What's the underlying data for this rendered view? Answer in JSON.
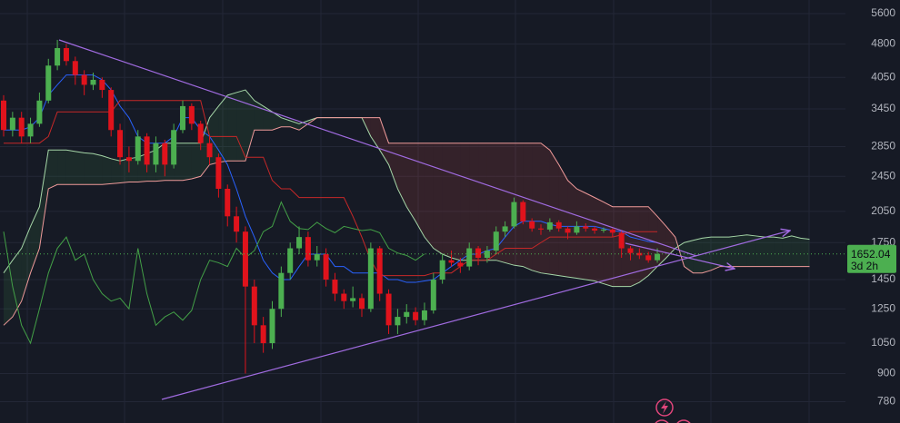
{
  "chart_data": {
    "type": "candlestick",
    "log_scale": true,
    "grid": true,
    "ylim": [
      700,
      6000
    ],
    "yticks": [
      780,
      900,
      1050,
      1250,
      1450,
      1750,
      2050,
      2450,
      2850,
      3450,
      4050,
      4800,
      5600
    ],
    "up_color": "#4caf50",
    "down_color": "#e0131c",
    "open": [
      3600,
      3100,
      3300,
      3000,
      3200,
      3600,
      4300,
      4700,
      4400,
      4100,
      3900,
      4000,
      3800,
      3100,
      2700,
      2650,
      3000,
      2600,
      2900,
      2600,
      3100,
      3500,
      3200,
      2900,
      2700,
      2300,
      2000,
      1850,
      1400,
      1150,
      1050,
      1250,
      1500,
      1700,
      1800,
      1600,
      1650,
      1450,
      1350,
      1300,
      1320,
      1250,
      1700,
      1350,
      1150,
      1200,
      1230,
      1180,
      1240,
      1450,
      1600,
      1580,
      1550,
      1700,
      1620,
      1680,
      1850,
      1900,
      2150,
      1950,
      1880,
      1870,
      1940,
      1880,
      1840,
      1900,
      1880,
      1860,
      1870,
      1840,
      1700,
      1660,
      1640,
      1600
    ],
    "high": [
      3700,
      3400,
      3400,
      3300,
      3750,
      4450,
      4900,
      4800,
      4500,
      4200,
      4150,
      4050,
      3850,
      3200,
      2850,
      3100,
      3050,
      3000,
      2950,
      3200,
      3600,
      3550,
      3250,
      3000,
      2750,
      2350,
      2100,
      1900,
      1450,
      1200,
      1300,
      1550,
      1750,
      1900,
      1850,
      1720,
      1700,
      1500,
      1380,
      1400,
      1350,
      1750,
      1720,
      1380,
      1250,
      1280,
      1260,
      1290,
      1500,
      1650,
      1680,
      1620,
      1750,
      1720,
      1720,
      1900,
      1950,
      2200,
      2170,
      1980,
      1920,
      1980,
      1960,
      1900,
      1950,
      1930,
      1900,
      1890,
      1880,
      1860,
      1720,
      1700,
      1670,
      1700
    ],
    "low": [
      3000,
      3000,
      2900,
      2900,
      3150,
      3550,
      4200,
      4300,
      3900,
      3700,
      3800,
      3650,
      3000,
      2600,
      2500,
      2600,
      2500,
      2500,
      2450,
      2550,
      3050,
      3100,
      2800,
      2600,
      2200,
      1900,
      1750,
      900,
      1050,
      1000,
      1020,
      1200,
      1450,
      1650,
      1550,
      1550,
      1400,
      1300,
      1250,
      1260,
      1200,
      1230,
      1300,
      1100,
      1100,
      1160,
      1150,
      1150,
      1220,
      1420,
      1550,
      1500,
      1520,
      1560,
      1580,
      1650,
      1800,
      1880,
      1920,
      1850,
      1820,
      1850,
      1850,
      1780,
      1820,
      1850,
      1830,
      1840,
      1800,
      1620,
      1600,
      1610,
      1580,
      1580
    ],
    "close": [
      3100,
      3300,
      3000,
      3200,
      3600,
      4300,
      4700,
      4400,
      4100,
      3900,
      4000,
      3800,
      3100,
      2700,
      2650,
      3000,
      2600,
      2900,
      2600,
      3100,
      3500,
      3200,
      2900,
      2700,
      2300,
      2000,
      1850,
      1400,
      1150,
      1050,
      1250,
      1500,
      1700,
      1800,
      1600,
      1650,
      1450,
      1350,
      1300,
      1320,
      1250,
      1700,
      1350,
      1150,
      1200,
      1230,
      1180,
      1240,
      1450,
      1600,
      1580,
      1550,
      1700,
      1620,
      1680,
      1850,
      1900,
      2150,
      1950,
      1880,
      1870,
      1940,
      1880,
      1840,
      1900,
      1880,
      1860,
      1870,
      1840,
      1700,
      1660,
      1640,
      1600,
      1652.04
    ],
    "series": [
      {
        "color": "#2962ff",
        "values": [
          3100,
          3100,
          3100,
          3150,
          3300,
          3700,
          3900,
          4100,
          4100,
          4100,
          4100,
          4000,
          3800,
          3500,
          3300,
          3000,
          2900,
          2900,
          2900,
          3000,
          3300,
          3300,
          3100,
          3000,
          2800,
          2600,
          2300,
          2000,
          1800,
          1600,
          1500,
          1450,
          1450,
          1550,
          1650,
          1650,
          1650,
          1550,
          1550,
          1500,
          1500,
          1500,
          1500,
          1450,
          1450,
          1430,
          1430,
          1440,
          1450,
          1500,
          1550,
          1600,
          1650,
          1650,
          1680,
          1700,
          1800,
          1900,
          1950,
          1950,
          1950,
          1920,
          1900,
          1900,
          1900,
          1900,
          1900,
          1880,
          1860,
          1850,
          1800,
          1780,
          1760,
          1750
        ]
      },
      {
        "color": "#c62828",
        "values": [
          2900,
          2900,
          2900,
          2900,
          2900,
          3000,
          3400,
          3400,
          3400,
          3400,
          3400,
          3400,
          3400,
          3600,
          3600,
          3600,
          3600,
          3600,
          3600,
          3600,
          3600,
          3600,
          3600,
          3000,
          3000,
          3000,
          3000,
          2700,
          2700,
          2700,
          2400,
          2300,
          2300,
          2200,
          2200,
          2200,
          2200,
          2200,
          2200,
          2000,
          1800,
          1600,
          1480,
          1480,
          1480,
          1480,
          1480,
          1480,
          1500,
          1500,
          1500,
          1550,
          1600,
          1600,
          1600,
          1650,
          1700,
          1700,
          1700,
          1700,
          1750,
          1800,
          1800,
          1800,
          1800,
          1800,
          1800,
          1800,
          1800,
          1820,
          1850,
          1850,
          1850,
          1850
        ]
      },
      {
        "color": "#43a047",
        "values": [
          1850,
          1400,
          1150,
          1050,
          1250,
          1500,
          1700,
          1800,
          1600,
          1650,
          1450,
          1350,
          1300,
          1320,
          1250,
          1700,
          1350,
          1150,
          1200,
          1230,
          1180,
          1240,
          1450,
          1600,
          1580,
          1550,
          1700,
          1620,
          1680,
          1850,
          1900,
          2150,
          1950,
          1880,
          1870,
          1940,
          1880,
          1840,
          1900,
          1880,
          1860,
          1870,
          1840,
          1700,
          1660,
          1640,
          1600,
          1652.04
        ]
      }
    ],
    "cloud": [
      {
        "color": "#a5d6a7",
        "values": [
          1500,
          1600,
          1700,
          1900,
          2100,
          2800,
          2800,
          2800,
          2780,
          2760,
          2750,
          2720,
          2680,
          2650,
          2680,
          2700,
          2750,
          2800,
          2900,
          2900,
          2900,
          2900,
          2900,
          3300,
          3500,
          3700,
          3750,
          3800,
          3600,
          3500,
          3400,
          3300,
          3250,
          3200,
          3250,
          3300,
          3300,
          3300,
          3300,
          3300,
          3300,
          3000,
          2800,
          2600,
          2300,
          2100,
          1950,
          1800,
          1700,
          1650,
          1620,
          1600,
          1600,
          1600,
          1600,
          1600,
          1580,
          1560,
          1550,
          1520,
          1500,
          1490,
          1480,
          1470,
          1460,
          1450,
          1440,
          1420,
          1400,
          1400,
          1400,
          1430,
          1480,
          1550,
          1620,
          1700,
          1750,
          1770,
          1790,
          1800,
          1800,
          1800,
          1810,
          1820,
          1810,
          1800,
          1800,
          1790,
          1810,
          1790,
          1780
        ]
      },
      {
        "color": "#ef9a9a",
        "values": [
          1150,
          1200,
          1300,
          1500,
          1700,
          2300,
          2350,
          2350,
          2350,
          2350,
          2350,
          2350,
          2360,
          2370,
          2380,
          2380,
          2390,
          2390,
          2400,
          2400,
          2400,
          2420,
          2450,
          2600,
          2630,
          2650,
          2650,
          2650,
          3100,
          3100,
          3100,
          3150,
          3150,
          3100,
          3200,
          3300,
          3300,
          3300,
          3300,
          3300,
          3300,
          3300,
          3300,
          2900,
          2900,
          2900,
          2900,
          2900,
          2900,
          2900,
          2900,
          2900,
          2900,
          2900,
          2900,
          2900,
          2900,
          2900,
          2900,
          2900,
          2900,
          2800,
          2600,
          2400,
          2300,
          2250,
          2200,
          2150,
          2100,
          2100,
          2100,
          2100,
          2100,
          2000,
          1900,
          1800,
          1550,
          1500,
          1500,
          1520,
          1550,
          1550,
          1550,
          1550,
          1550,
          1550,
          1550,
          1550,
          1550,
          1550,
          1550
        ]
      }
    ],
    "cloud_up_color": "rgba(76,175,80,0.12)",
    "cloud_down_color": "rgba(239,83,80,0.14)",
    "last_price": 1652.04,
    "countdown": "3d 2h"
  }
}
